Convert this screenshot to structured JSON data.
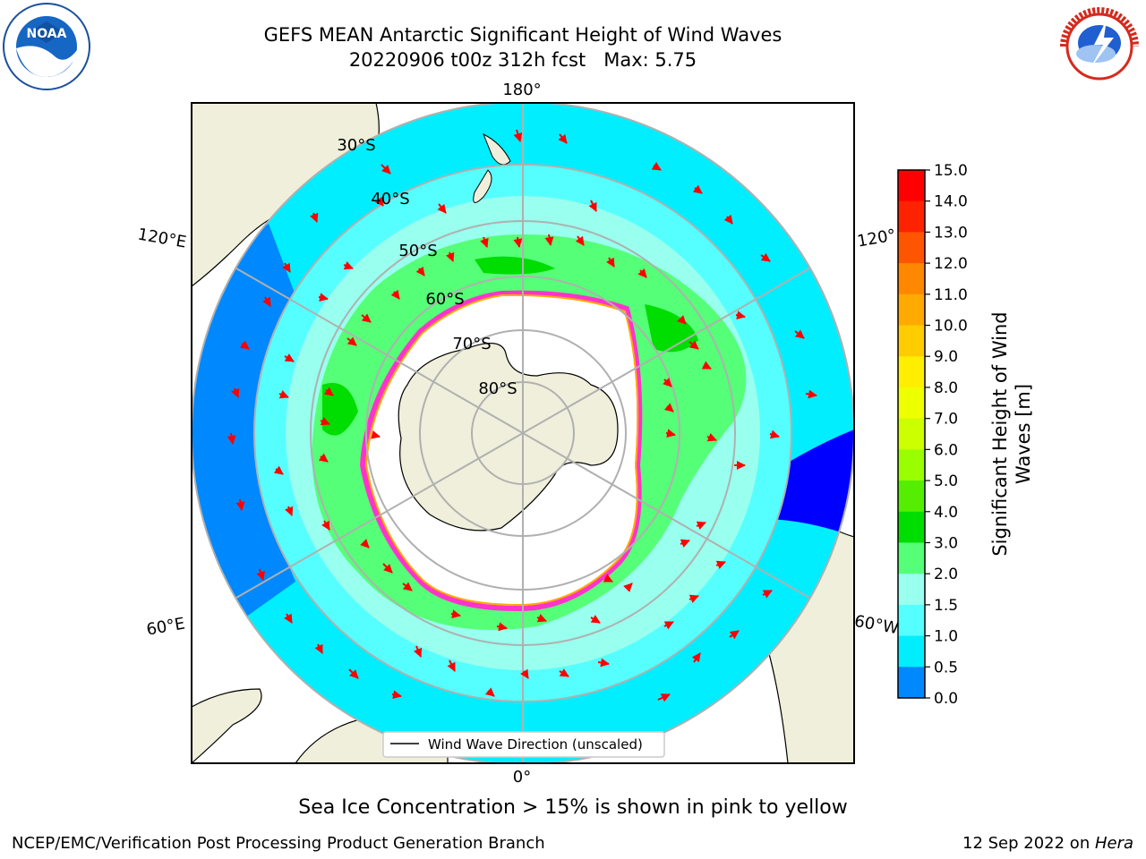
{
  "title": {
    "line1": "GEFS MEAN Antarctic Significant Height of Wind Waves",
    "line2": "20220906 t00z 312h fcst   Max: 5.75"
  },
  "logos": {
    "noaa": {
      "text": "NOAA",
      "ring_text": "NATIONAL OCEANIC AND ATMOSPHERIC ADMINISTRATION · U.S. DEPARTMENT OF COMMERCE",
      "icon": "noaa-logo"
    },
    "nws": {
      "ring_text": "NATIONAL WEATHER SERVICE",
      "icon": "nws-logo"
    }
  },
  "map": {
    "projection": "south-polar-stereographic",
    "longitude_labels": [
      "180°",
      "120°E",
      "120°",
      "60°E",
      "60°W",
      "0°"
    ],
    "latitude_labels": [
      "30°S",
      "40°S",
      "50°S",
      "60°S",
      "70°S",
      "80°S"
    ],
    "legend": "Wind Wave Direction (unscaled)",
    "colors": {
      "land": "#efefdb",
      "ocean_edge": "#1565ff",
      "sea_ice_edge": "#ff33cc",
      "arrows": "#ff0000",
      "grid": "#b0b0b0"
    }
  },
  "colorbar": {
    "label_line1": "Significant Height of Wind",
    "label_line2": "Waves [m]",
    "ticks": [
      "15.0",
      "14.0",
      "13.0",
      "12.0",
      "11.0",
      "10.0",
      "9.0",
      "8.0",
      "7.0",
      "6.0",
      "5.0",
      "4.0",
      "3.0",
      "2.0",
      "1.5",
      "1.0",
      "0.5",
      "0.0"
    ],
    "colors": [
      "#ff0000",
      "#ff2200",
      "#ff5500",
      "#ff8800",
      "#ffaa00",
      "#ffcc00",
      "#ffee00",
      "#eeff00",
      "#ccff00",
      "#99ff00",
      "#55ee00",
      "#00dd00",
      "#55ff77",
      "#99ffee",
      "#55ffff",
      "#00eeff",
      "#0088ff",
      "#0000ff"
    ]
  },
  "footer": {
    "subtitle": "Sea Ice Concentration > 15% is shown in pink to yellow",
    "credit": "NCEP/EMC/Verification Post Processing Product Generation Branch",
    "date_prefix": "12 Sep 2022 on ",
    "date_host": "Hera"
  }
}
